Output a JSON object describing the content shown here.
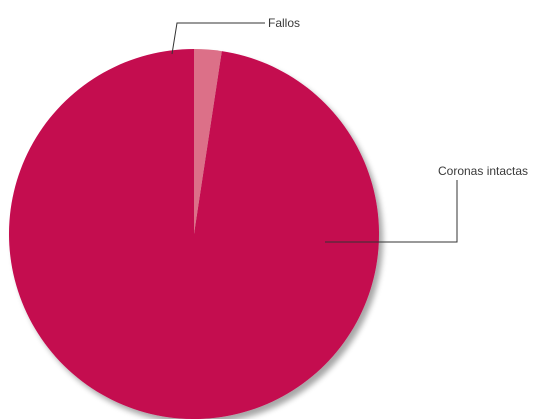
{
  "chart_data": {
    "type": "pie",
    "title": "",
    "slices": [
      {
        "label": "Coronas intactas",
        "value": 97.6,
        "color": "#c4084f"
      },
      {
        "label": "Fallos",
        "value": 2.4,
        "color": "#dc7088"
      }
    ],
    "start_angle_deg": 0,
    "direction": "counterclockwise",
    "legend": "none"
  }
}
